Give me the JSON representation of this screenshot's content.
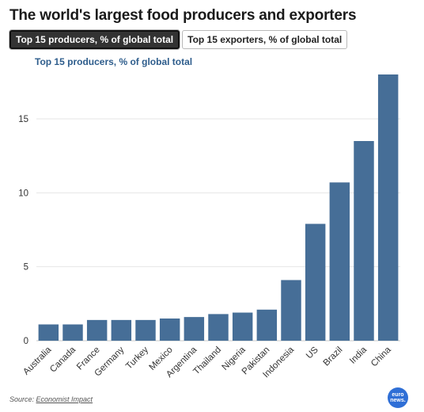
{
  "header": {
    "title": "The world's largest food producers and exporters"
  },
  "tabs": [
    {
      "label": "Top 15 producers, % of global total",
      "active": true
    },
    {
      "label": "Top 15 exporters, % of global total",
      "active": false
    }
  ],
  "footer": {
    "source_prefix": "Source: ",
    "source_name": "Economist Impact",
    "logo_line1": "euro",
    "logo_line2": "news."
  },
  "colors": {
    "bar": "#466e97",
    "subtitle": "#2e5d8c",
    "logo": "#2f6fd6"
  },
  "chart_data": {
    "type": "bar",
    "title": "Top 15 producers, % of global total",
    "xlabel": "",
    "ylabel": "",
    "categories": [
      "Australia",
      "Canada",
      "France",
      "Germany",
      "Turkey",
      "Mexico",
      "Argentina",
      "Thailand",
      "Nigeria",
      "Pakistan",
      "Indonesia",
      "US",
      "Brazil",
      "India",
      "China"
    ],
    "values": [
      1.1,
      1.1,
      1.4,
      1.4,
      1.4,
      1.5,
      1.6,
      1.8,
      1.9,
      2.1,
      4.1,
      7.9,
      10.7,
      13.5,
      18.0
    ],
    "ylim": [
      0,
      18
    ],
    "yticks": [
      0,
      5,
      10,
      15
    ],
    "grid": true,
    "legend": "none"
  }
}
